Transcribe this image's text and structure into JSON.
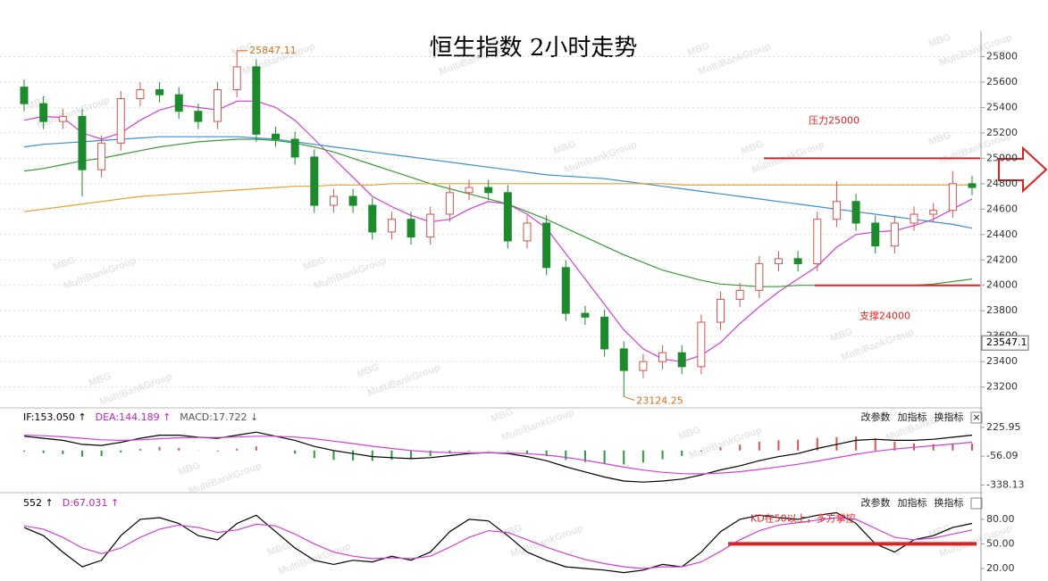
{
  "chart_data": [
    {
      "type": "candlestick",
      "title": "恒生指数 2小时走势",
      "up_color": "#d9534f",
      "down_color": "#1e8a2e",
      "open": [
        25560,
        25430,
        25290,
        25330,
        24910,
        25120,
        25470,
        25540,
        25500,
        25370,
        25290,
        25540,
        25720,
        25190,
        25150,
        25010,
        24630,
        24700,
        24630,
        24420,
        24520,
        24380,
        24560,
        24730,
        24770,
        24730,
        24350,
        24490,
        24140,
        23780,
        23750,
        23500,
        23330,
        23400,
        23470,
        23360,
        23710,
        23890,
        23960,
        24170,
        24210,
        24170,
        24520,
        24660,
        24490,
        24310,
        24490,
        24560,
        24590,
        24800
      ],
      "high": [
        25620,
        25490,
        25390,
        25390,
        25180,
        25530,
        25600,
        25600,
        25560,
        25430,
        25600,
        25847.11,
        25780,
        25250,
        25210,
        25070,
        24760,
        24760,
        24690,
        24580,
        24580,
        24620,
        24790,
        24830,
        24830,
        24790,
        24550,
        24550,
        24200,
        23840,
        23810,
        23560,
        23460,
        23530,
        23530,
        23770,
        23950,
        24020,
        24230,
        24270,
        24270,
        24580,
        24820,
        24720,
        24550,
        24550,
        24620,
        24650,
        24900,
        24860
      ],
      "low": [
        25370,
        25230,
        25230,
        24700,
        24850,
        25060,
        25410,
        25440,
        25310,
        25230,
        25230,
        25480,
        25130,
        25090,
        24950,
        24570,
        24570,
        24570,
        24360,
        24360,
        24320,
        24320,
        24500,
        24670,
        24670,
        24290,
        24290,
        24080,
        23720,
        23690,
        23440,
        23124.25,
        23270,
        23340,
        23300,
        23300,
        23650,
        23830,
        23900,
        24110,
        24110,
        24110,
        24460,
        24430,
        24250,
        24250,
        24430,
        24500,
        24530,
        24710
      ],
      "close": [
        25430,
        25290,
        25330,
        24910,
        25120,
        25470,
        25540,
        25500,
        25370,
        25290,
        25540,
        25720,
        25190,
        25150,
        25010,
        24630,
        24700,
        24630,
        24420,
        24520,
        24380,
        24560,
        24730,
        24770,
        24730,
        24350,
        24490,
        24140,
        23780,
        23750,
        23500,
        23330,
        23400,
        23470,
        23360,
        23710,
        23890,
        23960,
        24170,
        24210,
        24170,
        24520,
        24660,
        24490,
        24310,
        24490,
        24560,
        24590,
        24800,
        24770
      ],
      "series": [
        {
          "color": "#d43fd4",
          "values": [
            25300,
            25330,
            25320,
            25200,
            25150,
            25200,
            25300,
            25380,
            25420,
            25400,
            25380,
            25450,
            25450,
            25400,
            25300,
            25150,
            25000,
            24850,
            24700,
            24620,
            24550,
            24500,
            24520,
            24600,
            24660,
            24640,
            24560,
            24450,
            24250,
            24050,
            23850,
            23650,
            23500,
            23420,
            23400,
            23450,
            23550,
            23700,
            23830,
            23950,
            24050,
            24150,
            24300,
            24400,
            24420,
            24430,
            24470,
            24520,
            24600,
            24680
          ]
        },
        {
          "color": "#3a9a3a",
          "values": [
            24900,
            24920,
            24950,
            24980,
            25000,
            25030,
            25060,
            25090,
            25110,
            25130,
            25140,
            25150,
            25150,
            25140,
            25120,
            25090,
            25050,
            25000,
            24950,
            24900,
            24850,
            24800,
            24760,
            24720,
            24680,
            24640,
            24580,
            24520,
            24450,
            24380,
            24310,
            24240,
            24180,
            24120,
            24080,
            24040,
            24010,
            24000,
            23990,
            23990,
            24000,
            24000,
            24000,
            24000,
            24000,
            24000,
            24000,
            24010,
            24030,
            24050
          ]
        },
        {
          "color": "#3b8fd6",
          "values": [
            25090,
            25110,
            25120,
            25130,
            25140,
            25150,
            25160,
            25170,
            25170,
            25170,
            25170,
            25170,
            25160,
            25150,
            25130,
            25110,
            25090,
            25070,
            25050,
            25030,
            25010,
            24990,
            24970,
            24950,
            24930,
            24910,
            24890,
            24870,
            24860,
            24850,
            24840,
            24820,
            24800,
            24780,
            24760,
            24740,
            24720,
            24700,
            24680,
            24660,
            24640,
            24620,
            24600,
            24580,
            24560,
            24540,
            24520,
            24500,
            24480,
            24450
          ]
        },
        {
          "color": "#e8a030",
          "values": [
            24580,
            24600,
            24620,
            24640,
            24660,
            24680,
            24700,
            24710,
            24720,
            24730,
            24740,
            24750,
            24760,
            24770,
            24780,
            24780,
            24790,
            24790,
            24790,
            24800,
            24800,
            24800,
            24800,
            24800,
            24800,
            24800,
            24800,
            24800,
            24800,
            24800,
            24800,
            24800,
            24800,
            24800,
            24790,
            24790,
            24790,
            24790,
            24790,
            24790,
            24790,
            24790,
            24790,
            24790,
            24790,
            24790,
            24790,
            24790,
            24790,
            24790
          ]
        }
      ],
      "ylim": [
        23050,
        26000
      ],
      "yticks": [
        23200,
        23400,
        23600,
        23800,
        24000,
        24200,
        24400,
        24600,
        24800,
        25000,
        25200,
        25400,
        25600,
        25800
      ],
      "grid": true,
      "price_marker": 23547.1,
      "annotations": [
        {
          "text": "压力25000",
          "value": 25000,
          "color": "#e02020"
        },
        {
          "text": "支撑24000",
          "value": 24000,
          "color": "#e02020"
        }
      ],
      "watermark": "MBG",
      "watermark_sub": "MultiBankGroup"
    },
    {
      "type": "macd",
      "header": [
        {
          "text": "IF:153.050 ↑",
          "color": "#000000"
        },
        {
          "text": "DEA:144.189 ↑",
          "color": "#c020c0"
        },
        {
          "text": "MACD:17.722 ↓",
          "color": "#555555"
        }
      ],
      "buttons": [
        "改参数",
        "加指标",
        "换指标",
        "×"
      ],
      "series": [
        {
          "color": "#000000",
          "values": [
            140,
            120,
            100,
            60,
            50,
            80,
            120,
            150,
            150,
            130,
            120,
            150,
            180,
            140,
            100,
            40,
            0,
            -30,
            -60,
            -70,
            -80,
            -70,
            -50,
            -30,
            -20,
            -30,
            -60,
            -100,
            -160,
            -210,
            -260,
            -300,
            -310,
            -300,
            -280,
            -240,
            -190,
            -150,
            -100,
            -60,
            -30,
            20,
            60,
            100,
            110,
            100,
            100,
            110,
            130,
            150
          ]
        },
        {
          "color": "#d43fd4",
          "values": [
            150,
            145,
            135,
            120,
            105,
            100,
            105,
            115,
            125,
            128,
            128,
            132,
            140,
            140,
            132,
            115,
            92,
            68,
            42,
            20,
            0,
            -14,
            -21,
            -23,
            -22,
            -24,
            -31,
            -45,
            -68,
            -96,
            -129,
            -163,
            -192,
            -214,
            -227,
            -230,
            -222,
            -208,
            -186,
            -161,
            -135,
            -104,
            -71,
            -37,
            -8,
            14,
            31,
            47,
            64,
            81
          ]
        }
      ],
      "histogram": [
        -10,
        -25,
        -35,
        -60,
        -55,
        -20,
        15,
        35,
        25,
        2,
        -8,
        18,
        40,
        0,
        -32,
        -75,
        -92,
        -98,
        -102,
        -90,
        -80,
        -56,
        -29,
        -7,
        2,
        -6,
        -29,
        -55,
        -92,
        -114,
        -131,
        -137,
        -118,
        -86,
        -53,
        -10,
        32,
        58,
        86,
        101,
        105,
        124,
        131,
        137,
        118,
        86,
        69,
        63,
        66,
        69
      ],
      "up_color": "#e05050",
      "down_color": "#2a9a3a",
      "ylim": [
        -396,
        392
      ],
      "yticks": [
        225.95,
        -56.09,
        -338.13
      ]
    },
    {
      "type": "line",
      "header": [
        {
          "text": "552 ↑",
          "color": "#000000"
        },
        {
          "text": "D:67.031 ↑",
          "color": "#c020c0"
        }
      ],
      "buttons": [
        "改参数",
        "加指标",
        "换指标"
      ],
      "series": [
        {
          "color": "#000000",
          "values": [
            70,
            60,
            40,
            22,
            30,
            60,
            80,
            82,
            75,
            60,
            55,
            75,
            85,
            65,
            45,
            30,
            25,
            30,
            28,
            35,
            30,
            40,
            65,
            80,
            78,
            60,
            40,
            30,
            22,
            20,
            18,
            15,
            18,
            25,
            22,
            40,
            65,
            80,
            85,
            82,
            80,
            85,
            88,
            75,
            50,
            40,
            55,
            60,
            70,
            75
          ]
        },
        {
          "color": "#d43fd4",
          "values": [
            72,
            68,
            58,
            45,
            38,
            45,
            58,
            68,
            73,
            70,
            64,
            67,
            74,
            72,
            62,
            50,
            40,
            35,
            32,
            33,
            32,
            35,
            46,
            58,
            66,
            64,
            55,
            46,
            38,
            31,
            26,
            22,
            20,
            22,
            22,
            28,
            41,
            55,
            66,
            73,
            76,
            79,
            82,
            80,
            69,
            58,
            55,
            57,
            62,
            67
          ]
        }
      ],
      "ylim": [
        8,
        106
      ],
      "yticks": [
        {
          "value": 80,
          "label": "80.00"
        },
        {
          "value": 50,
          "label": "50.00"
        },
        {
          "value": 20,
          "label": "20.00"
        }
      ],
      "annotations": [
        {
          "text": "KD在50以上，多方掌控",
          "value": 50,
          "color": "#e02020"
        }
      ]
    }
  ]
}
